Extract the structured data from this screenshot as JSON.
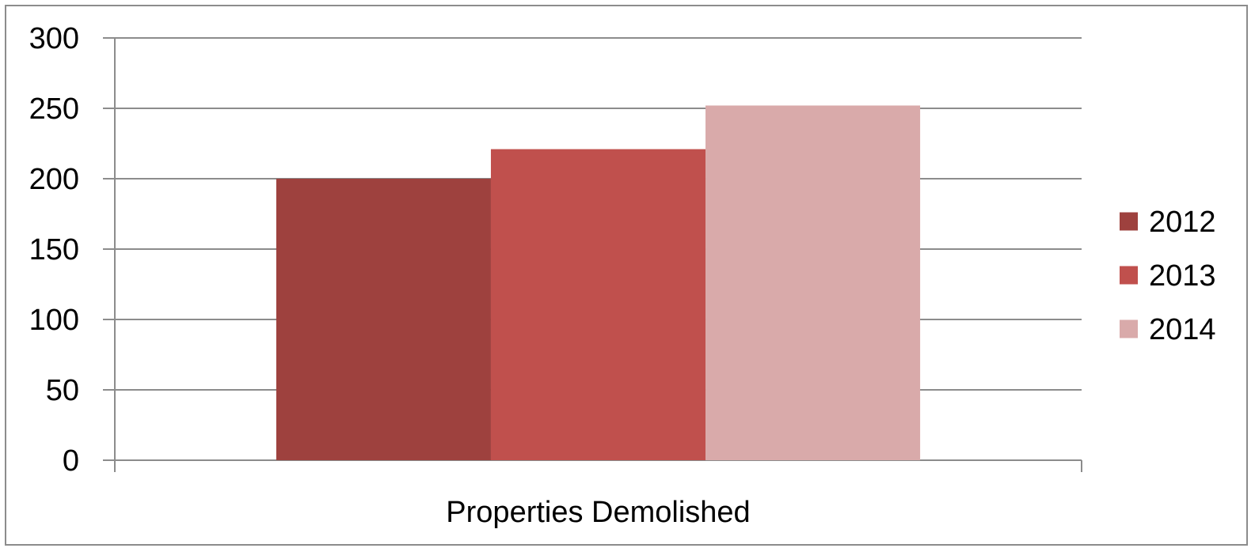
{
  "chart_data": {
    "type": "bar",
    "categories": [
      "Properties Demolished"
    ],
    "series": [
      {
        "name": "2012",
        "values": [
          200
        ],
        "color": "#9e413e"
      },
      {
        "name": "2013",
        "values": [
          221
        ],
        "color": "#c0504d"
      },
      {
        "name": "2014",
        "values": [
          252
        ],
        "color": "#d9aaaa"
      }
    ],
    "ylim": [
      0,
      300
    ],
    "yticks": [
      0,
      50,
      100,
      150,
      200,
      250,
      300
    ],
    "grid": true,
    "legend": "right",
    "title": "",
    "xlabel": "",
    "ylabel": ""
  }
}
